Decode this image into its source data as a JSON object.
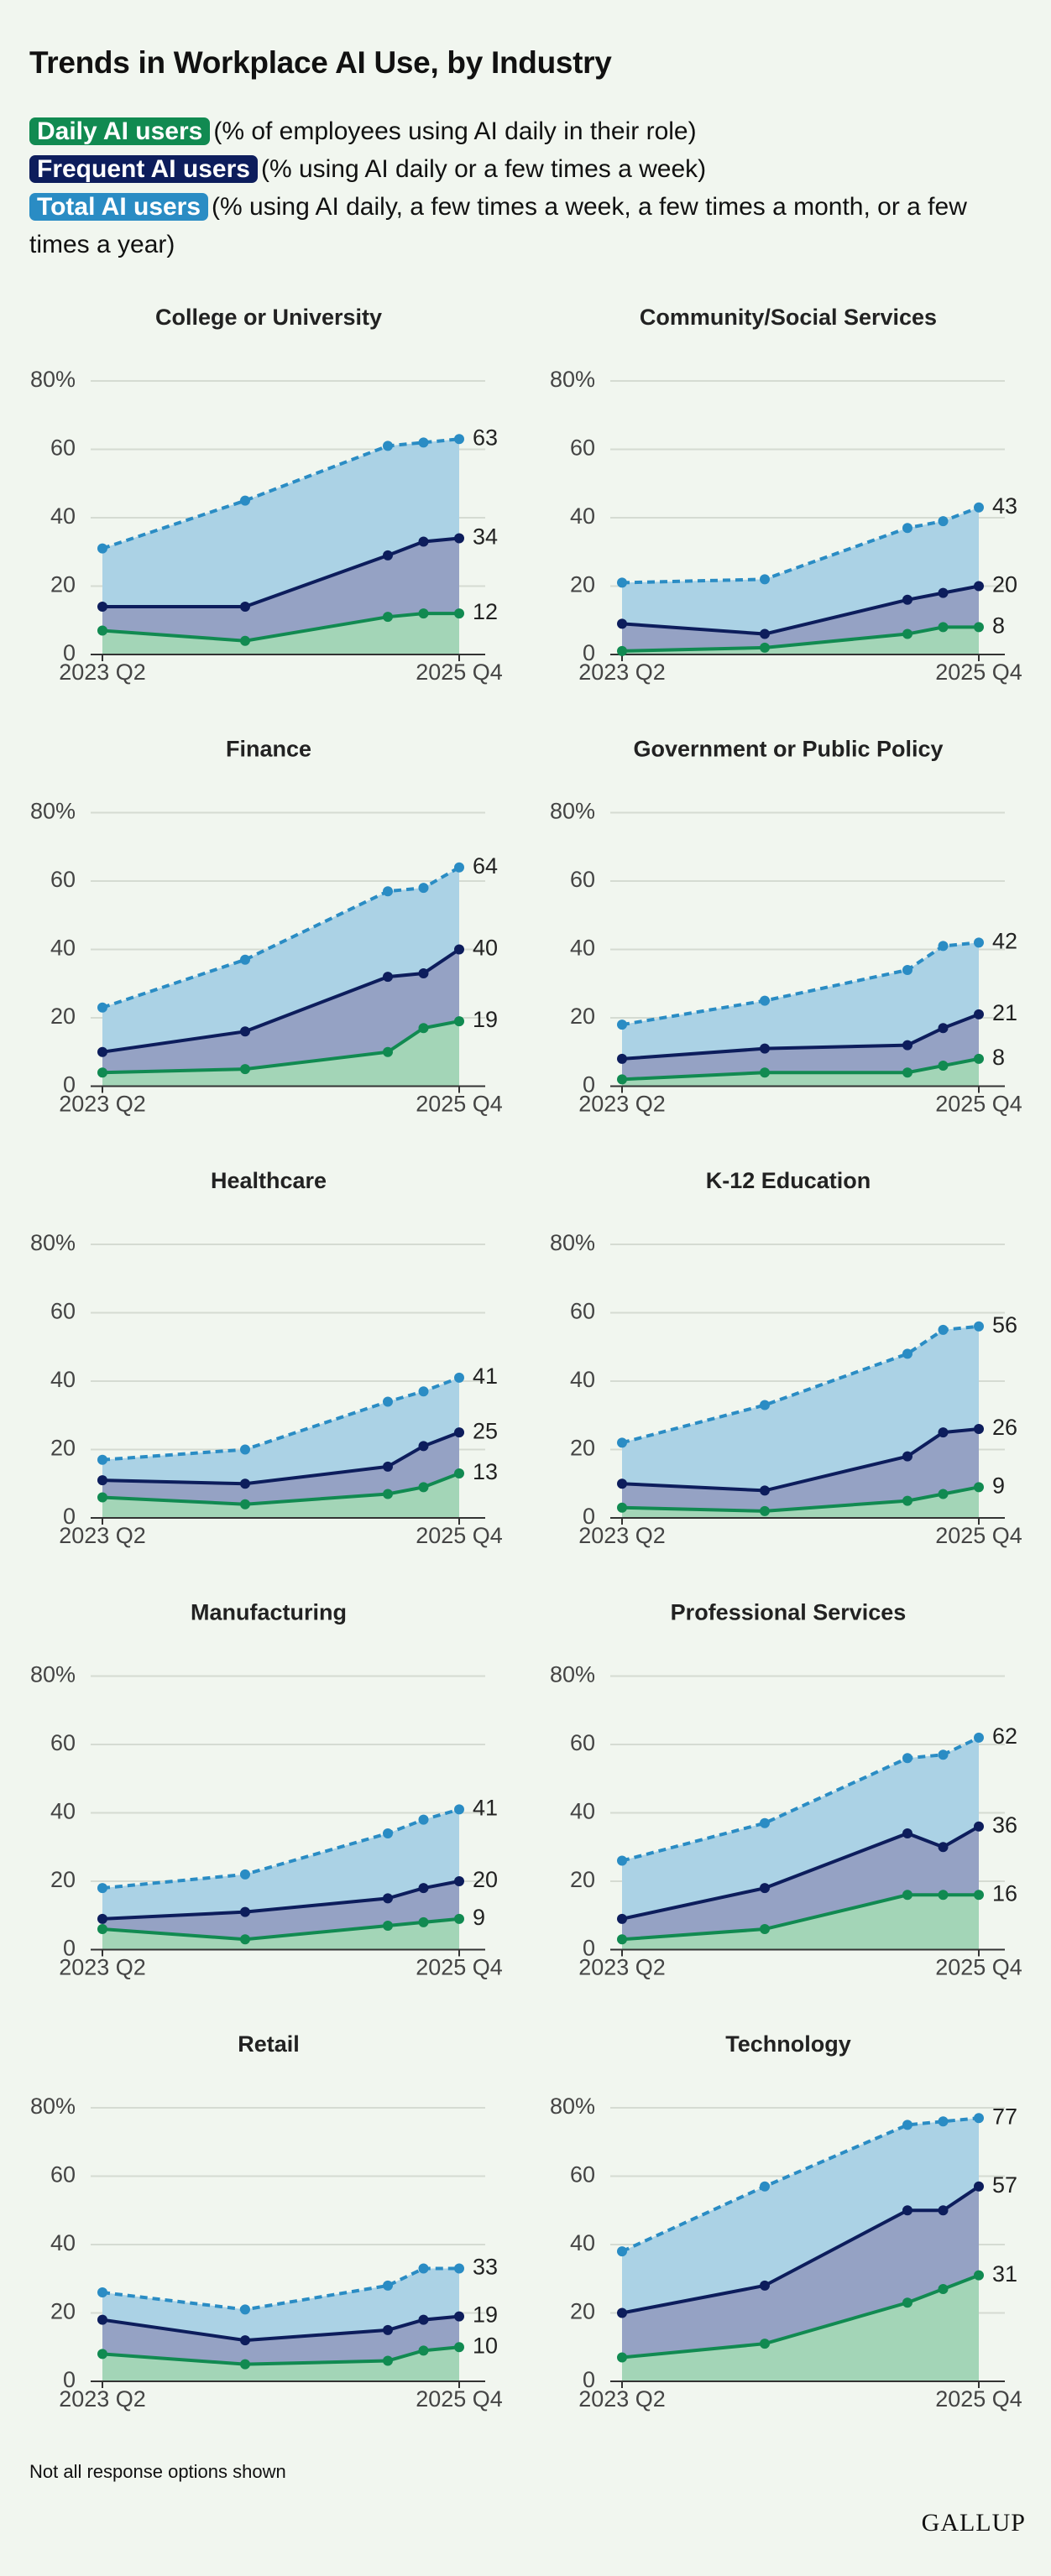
{
  "title": "Trends in Workplace AI Use, by Industry",
  "legend": [
    {
      "name": "Daily AI users",
      "description": "(% of employees using AI daily in their role)",
      "color": "#118a51",
      "fill": "#a3d5b7",
      "line_style": "solid"
    },
    {
      "name": "Frequent AI users",
      "description": "(% using AI daily or a few times a week)",
      "color": "#0d1d5c",
      "fill": "#95a2c4",
      "line_style": "solid"
    },
    {
      "name": "Total AI users",
      "description": "(% using AI daily, a few times a week, a few times a month, or a few times a year)",
      "color": "#2a8cc4",
      "fill": "#abd2e5",
      "line_style": "dashed"
    }
  ],
  "footnote": "Not all response options shown",
  "source": "GALLUP",
  "chart_data": [
    {
      "type": "area",
      "title": "College or University",
      "x": [
        0,
        4,
        8,
        9,
        10
      ],
      "xlim": [
        0,
        10
      ],
      "xticks": [
        {
          "value": 0,
          "label": "2023 Q2"
        },
        {
          "value": 10,
          "label": "2025 Q4"
        }
      ],
      "ylim": [
        0,
        80
      ],
      "yticks": [
        0,
        20,
        40,
        60,
        {
          "value": 80,
          "label": "80%"
        }
      ],
      "grid": true,
      "series": [
        {
          "values": [
            7,
            4,
            11,
            12,
            12
          ]
        },
        {
          "values": [
            14,
            14,
            29,
            33,
            34
          ]
        },
        {
          "values": [
            31,
            45,
            61,
            62,
            63
          ]
        }
      ]
    },
    {
      "type": "area",
      "title": "Community/Social Services",
      "x": [
        0,
        4,
        8,
        9,
        10
      ],
      "xlim": [
        0,
        10
      ],
      "xticks": [
        {
          "value": 0,
          "label": "2023 Q2"
        },
        {
          "value": 10,
          "label": "2025 Q4"
        }
      ],
      "ylim": [
        0,
        80
      ],
      "yticks": [
        0,
        20,
        40,
        60,
        {
          "value": 80,
          "label": "80%"
        }
      ],
      "grid": true,
      "series": [
        {
          "values": [
            1,
            2,
            6,
            8,
            8
          ]
        },
        {
          "values": [
            9,
            6,
            16,
            18,
            20
          ]
        },
        {
          "values": [
            21,
            22,
            37,
            39,
            43
          ]
        }
      ]
    },
    {
      "type": "area",
      "title": "Finance",
      "x": [
        0,
        4,
        8,
        9,
        10
      ],
      "xlim": [
        0,
        10
      ],
      "xticks": [
        {
          "value": 0,
          "label": "2023 Q2"
        },
        {
          "value": 10,
          "label": "2025 Q4"
        }
      ],
      "ylim": [
        0,
        80
      ],
      "yticks": [
        0,
        20,
        40,
        60,
        {
          "value": 80,
          "label": "80%"
        }
      ],
      "grid": true,
      "series": [
        {
          "values": [
            4,
            5,
            10,
            17,
            19
          ]
        },
        {
          "values": [
            10,
            16,
            32,
            33,
            40
          ]
        },
        {
          "values": [
            23,
            37,
            57,
            58,
            64
          ]
        }
      ]
    },
    {
      "type": "area",
      "title": "Government or Public Policy",
      "x": [
        0,
        4,
        8,
        9,
        10
      ],
      "xlim": [
        0,
        10
      ],
      "xticks": [
        {
          "value": 0,
          "label": "2023 Q2"
        },
        {
          "value": 10,
          "label": "2025 Q4"
        }
      ],
      "ylim": [
        0,
        80
      ],
      "yticks": [
        0,
        20,
        40,
        60,
        {
          "value": 80,
          "label": "80%"
        }
      ],
      "grid": true,
      "series": [
        {
          "values": [
            2,
            4,
            4,
            6,
            8
          ]
        },
        {
          "values": [
            8,
            11,
            12,
            17,
            21
          ]
        },
        {
          "values": [
            18,
            25,
            34,
            41,
            42
          ]
        }
      ]
    },
    {
      "type": "area",
      "title": "Healthcare",
      "x": [
        0,
        4,
        8,
        9,
        10
      ],
      "xlim": [
        0,
        10
      ],
      "xticks": [
        {
          "value": 0,
          "label": "2023 Q2"
        },
        {
          "value": 10,
          "label": "2025 Q4"
        }
      ],
      "ylim": [
        0,
        80
      ],
      "yticks": [
        0,
        20,
        40,
        60,
        {
          "value": 80,
          "label": "80%"
        }
      ],
      "grid": true,
      "series": [
        {
          "values": [
            6,
            4,
            7,
            9,
            13
          ]
        },
        {
          "values": [
            11,
            10,
            15,
            21,
            25
          ]
        },
        {
          "values": [
            17,
            20,
            34,
            37,
            41
          ]
        }
      ]
    },
    {
      "type": "area",
      "title": "K-12 Education",
      "x": [
        0,
        4,
        8,
        9,
        10
      ],
      "xlim": [
        0,
        10
      ],
      "xticks": [
        {
          "value": 0,
          "label": "2023 Q2"
        },
        {
          "value": 10,
          "label": "2025 Q4"
        }
      ],
      "ylim": [
        0,
        80
      ],
      "yticks": [
        0,
        20,
        40,
        60,
        {
          "value": 80,
          "label": "80%"
        }
      ],
      "grid": true,
      "series": [
        {
          "values": [
            3,
            2,
            5,
            7,
            9
          ]
        },
        {
          "values": [
            10,
            8,
            18,
            25,
            26
          ]
        },
        {
          "values": [
            22,
            33,
            48,
            55,
            56
          ]
        }
      ]
    },
    {
      "type": "area",
      "title": "Manufacturing",
      "x": [
        0,
        4,
        8,
        9,
        10
      ],
      "xlim": [
        0,
        10
      ],
      "xticks": [
        {
          "value": 0,
          "label": "2023 Q2"
        },
        {
          "value": 10,
          "label": "2025 Q4"
        }
      ],
      "ylim": [
        0,
        80
      ],
      "yticks": [
        0,
        20,
        40,
        60,
        {
          "value": 80,
          "label": "80%"
        }
      ],
      "grid": true,
      "series": [
        {
          "values": [
            6,
            3,
            7,
            8,
            9
          ]
        },
        {
          "values": [
            9,
            11,
            15,
            18,
            20
          ]
        },
        {
          "values": [
            18,
            22,
            34,
            38,
            41
          ]
        }
      ]
    },
    {
      "type": "area",
      "title": "Professional Services",
      "x": [
        0,
        4,
        8,
        9,
        10
      ],
      "xlim": [
        0,
        10
      ],
      "xticks": [
        {
          "value": 0,
          "label": "2023 Q2"
        },
        {
          "value": 10,
          "label": "2025 Q4"
        }
      ],
      "ylim": [
        0,
        80
      ],
      "yticks": [
        0,
        20,
        40,
        60,
        {
          "value": 80,
          "label": "80%"
        }
      ],
      "grid": true,
      "series": [
        {
          "values": [
            3,
            6,
            16,
            16,
            16
          ]
        },
        {
          "values": [
            9,
            18,
            34,
            30,
            36
          ]
        },
        {
          "values": [
            26,
            37,
            56,
            57,
            62
          ]
        }
      ]
    },
    {
      "type": "area",
      "title": "Retail",
      "x": [
        0,
        4,
        8,
        9,
        10
      ],
      "xlim": [
        0,
        10
      ],
      "xticks": [
        {
          "value": 0,
          "label": "2023 Q2"
        },
        {
          "value": 10,
          "label": "2025 Q4"
        }
      ],
      "ylim": [
        0,
        80
      ],
      "yticks": [
        0,
        20,
        40,
        60,
        {
          "value": 80,
          "label": "80%"
        }
      ],
      "grid": true,
      "series": [
        {
          "values": [
            8,
            5,
            6,
            9,
            10
          ]
        },
        {
          "values": [
            18,
            12,
            15,
            18,
            19
          ]
        },
        {
          "values": [
            26,
            21,
            28,
            33,
            33
          ]
        }
      ]
    },
    {
      "type": "area",
      "title": "Technology",
      "x": [
        0,
        4,
        8,
        9,
        10
      ],
      "xlim": [
        0,
        10
      ],
      "xticks": [
        {
          "value": 0,
          "label": "2023 Q2"
        },
        {
          "value": 10,
          "label": "2025 Q4"
        }
      ],
      "ylim": [
        0,
        80
      ],
      "yticks": [
        0,
        20,
        40,
        60,
        {
          "value": 80,
          "label": "80%"
        }
      ],
      "grid": true,
      "series": [
        {
          "values": [
            7,
            11,
            23,
            27,
            31
          ]
        },
        {
          "values": [
            20,
            28,
            50,
            50,
            57
          ]
        },
        {
          "values": [
            38,
            57,
            75,
            76,
            77
          ]
        }
      ]
    }
  ]
}
